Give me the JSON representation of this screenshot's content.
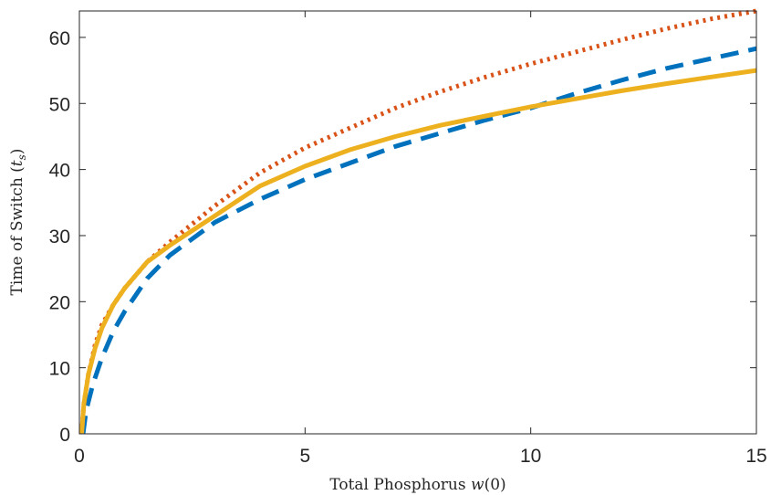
{
  "chart_data": {
    "type": "line",
    "xlabel": "Total Phosphorus w(0)",
    "ylabel": "Time of Switch (t_s)",
    "xlim": [
      0,
      15
    ],
    "ylim": [
      0,
      64
    ],
    "xticks": [
      "0",
      "5",
      "10",
      "15"
    ],
    "yticks": [
      "0",
      "10",
      "20",
      "30",
      "40",
      "50",
      "60"
    ],
    "grid": false,
    "series": [
      {
        "color": "#0072BD",
        "linestyle": "dashed",
        "x": [
          0.08,
          0.15,
          0.3,
          0.5,
          0.75,
          1,
          1.5,
          2,
          3,
          4,
          5,
          6,
          7,
          8,
          9,
          10,
          11,
          12,
          13,
          14,
          15
        ],
        "y": [
          0,
          3.5,
          7.5,
          11.5,
          15.5,
          18.5,
          23.5,
          27,
          32,
          35.5,
          38.5,
          41,
          43.5,
          45.5,
          47.5,
          49.3,
          51.5,
          53.5,
          55.3,
          56.8,
          58.3
        ]
      },
      {
        "color": "#D95319",
        "linestyle": "dotted",
        "x": [
          0.05,
          0.1,
          0.2,
          0.35,
          0.5,
          0.75,
          1,
          1.5,
          2,
          3,
          4,
          5,
          6,
          7,
          8,
          9,
          10,
          11,
          12,
          13,
          14,
          15
        ],
        "y": [
          0,
          4.5,
          9,
          13.5,
          16.5,
          19.5,
          22,
          26,
          29,
          34.5,
          39.5,
          43.3,
          46.3,
          49.3,
          51.8,
          54,
          56,
          57.8,
          59.6,
          61.3,
          62.8,
          64.2
        ]
      },
      {
        "color": "#EDB120",
        "linestyle": "solid",
        "x": [
          0.05,
          0.1,
          0.2,
          0.35,
          0.5,
          0.75,
          1,
          1.5,
          2,
          3,
          4,
          5,
          6,
          7,
          8,
          9,
          10,
          11,
          12,
          13,
          14,
          15
        ],
        "y": [
          0,
          4.5,
          9,
          13,
          16,
          19.5,
          22,
          26,
          28.5,
          33,
          37.5,
          40.5,
          43,
          45,
          46.7,
          48.1,
          49.5,
          50.7,
          51.9,
          53,
          54,
          55
        ]
      }
    ]
  }
}
